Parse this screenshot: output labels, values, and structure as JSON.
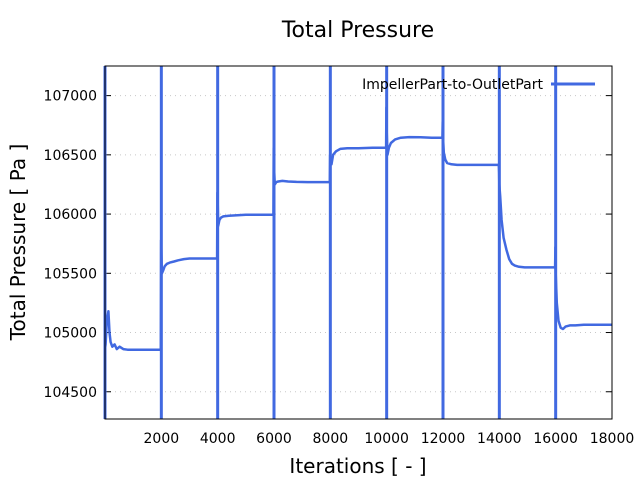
{
  "chart_data": {
    "type": "line",
    "title": "Total Pressure",
    "xlabel": "Iterations [ - ]",
    "ylabel": "Total Pressure [ Pa ]",
    "xlim": [
      0,
      18000
    ],
    "ylim": [
      104270,
      107250
    ],
    "xticks": [
      2000,
      4000,
      6000,
      8000,
      10000,
      12000,
      14000,
      16000,
      18000
    ],
    "yticks": [
      104500,
      105000,
      105500,
      106000,
      106500,
      107000
    ],
    "grid": true,
    "legend": {
      "position": "top-right",
      "entries": [
        "ImpellerPart-to-OutletPart"
      ]
    },
    "color": "#4169e1",
    "series": [
      {
        "name": "ImpellerPart-to-OutletPart",
        "x": [
          0,
          20,
          60,
          120,
          160,
          200,
          260,
          340,
          420,
          520,
          650,
          800,
          1000,
          1200,
          1500,
          1800,
          1980,
          1990,
          2000,
          2020,
          2060,
          2120,
          2200,
          2300,
          2450,
          2600,
          2800,
          3000,
          3200,
          3500,
          3800,
          3980,
          3990,
          4000,
          4020,
          4060,
          4120,
          4200,
          4400,
          4700,
          5000,
          5400,
          5800,
          5980,
          5990,
          6000,
          6030,
          6080,
          6150,
          6300,
          6500,
          6800,
          7200,
          7600,
          7980,
          7990,
          8000,
          8040,
          8100,
          8200,
          8350,
          8600,
          9000,
          9500,
          9980,
          9990,
          10000,
          10030,
          10080,
          10150,
          10300,
          10500,
          10800,
          11200,
          11600,
          11980,
          11990,
          12000,
          12030,
          12080,
          12150,
          12300,
          12500,
          12800,
          13200,
          13600,
          13980,
          13990,
          14000,
          14030,
          14080,
          14150,
          14250,
          14350,
          14450,
          14550,
          14700,
          14900,
          15200,
          15500,
          15980,
          15990,
          16000,
          16040,
          16100,
          16180,
          16260,
          16350,
          16500,
          16700,
          17000,
          17400,
          17800,
          18000
        ],
        "values": [
          104860,
          104900,
          105080,
          105180,
          105000,
          104920,
          104880,
          104900,
          104860,
          104880,
          104860,
          104855,
          104855,
          104855,
          104855,
          104855,
          104855,
          105780,
          105700,
          105500,
          105520,
          105560,
          105580,
          105590,
          105600,
          105610,
          105620,
          105625,
          105625,
          105625,
          105625,
          105625,
          106180,
          106100,
          105900,
          105950,
          105970,
          105980,
          105985,
          105990,
          105995,
          105995,
          105995,
          105995,
          106560,
          106400,
          106250,
          106270,
          106275,
          106280,
          106275,
          106272,
          106270,
          106270,
          106270,
          106500,
          106480,
          106420,
          106500,
          106530,
          106550,
          106555,
          106555,
          106560,
          106560,
          106900,
          106700,
          106500,
          106560,
          106600,
          106630,
          106645,
          106650,
          106648,
          106645,
          106645,
          106780,
          106650,
          106520,
          106460,
          106430,
          106420,
          106415,
          106415,
          106415,
          106415,
          106415,
          106350,
          106250,
          106150,
          105950,
          105800,
          105700,
          105620,
          105580,
          105565,
          105555,
          105550,
          105550,
          105550,
          105550,
          105720,
          105500,
          105250,
          105100,
          105040,
          105030,
          105050,
          105060,
          105060,
          105065,
          105065,
          105065,
          105065
        ]
      }
    ]
  }
}
